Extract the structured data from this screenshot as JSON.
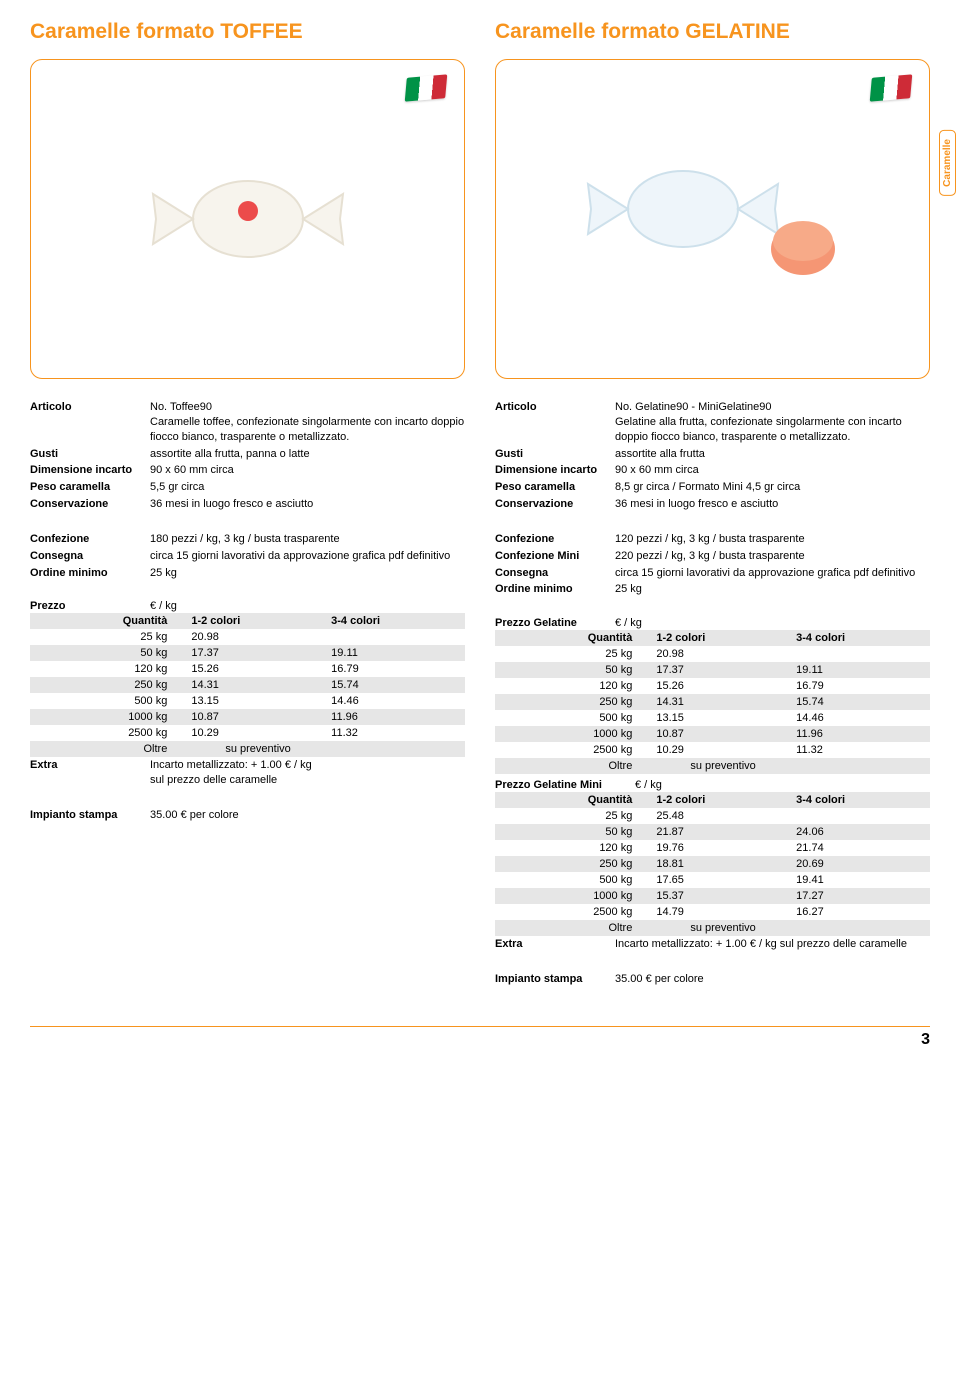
{
  "page": {
    "side_tab": "Caramelle",
    "page_number": "3"
  },
  "colors": {
    "accent": "#f7941e",
    "stripe": "#e6e6e6",
    "text": "#000000",
    "bg": "#ffffff"
  },
  "left": {
    "title": "Caramelle formato TOFFEE",
    "specs1": [
      {
        "label": "Articolo",
        "value": "No. Toffee90\nCaramelle toffee, confezionate singolarmente con incarto doppio fiocco bianco, trasparente o metallizzato."
      },
      {
        "label": "Gusti",
        "value": "assortite alla frutta, panna o latte"
      },
      {
        "label": "Dimensione incarto",
        "value": "90 x 60 mm circa"
      },
      {
        "label": "Peso caramella",
        "value": "5,5 gr circa"
      },
      {
        "label": "Conservazione",
        "value": "36 mesi in luogo fresco e asciutto"
      }
    ],
    "specs2": [
      {
        "label": "Confezione",
        "value": "180 pezzi / kg, 3 kg / busta trasparente"
      },
      {
        "label": "Consegna",
        "value": "circa 15 giorni lavorativi da approvazione grafica pdf definitivo"
      },
      {
        "label": "Ordine minimo",
        "value": "25 kg"
      }
    ],
    "price_title_label": "Prezzo",
    "price_title_value": "€ / kg",
    "price_table": {
      "headers": [
        "Quantità",
        "1-2 colori",
        "3-4 colori"
      ],
      "rows": [
        {
          "q": "25 kg",
          "c12": "20.98",
          "c34": ""
        },
        {
          "q": "50 kg",
          "c12": "17.37",
          "c34": "19.11"
        },
        {
          "q": "120 kg",
          "c12": "15.26",
          "c34": "16.79"
        },
        {
          "q": "250 kg",
          "c12": "14.31",
          "c34": "15.74"
        },
        {
          "q": "500 kg",
          "c12": "13.15",
          "c34": "14.46"
        },
        {
          "q": "1000 kg",
          "c12": "10.87",
          "c34": "11.96"
        },
        {
          "q": "2500 kg",
          "c12": "10.29",
          "c34": "11.32"
        },
        {
          "q": "Oltre",
          "c12": "",
          "c34": "",
          "span": "su preventivo"
        }
      ]
    },
    "extra_label": "Extra",
    "extra_value": "Incarto metallizzato: + 1.00 € / kg\nsul prezzo delle caramelle",
    "impianto_label": "Impianto stampa",
    "impianto_value": "35.00 € per colore"
  },
  "right": {
    "title": "Caramelle formato GELATINE",
    "specs1": [
      {
        "label": "Articolo",
        "value": "No. Gelatine90 - MiniGelatine90\nGelatine alla frutta, confezionate singolarmente con incarto doppio fiocco bianco, trasparente o metallizzato."
      },
      {
        "label": "Gusti",
        "value": "assortite alla frutta"
      },
      {
        "label": "Dimensione incarto",
        "value": "90 x 60 mm circa"
      },
      {
        "label": "Peso caramella",
        "value": "8,5 gr circa / Formato Mini 4,5 gr circa"
      },
      {
        "label": "Conservazione",
        "value": "36 mesi in luogo fresco e asciutto"
      }
    ],
    "specs2": [
      {
        "label": "Confezione",
        "value": "120 pezzi / kg, 3 kg / busta trasparente"
      },
      {
        "label": "Confezione Mini",
        "value": "220 pezzi / kg, 3 kg / busta trasparente"
      },
      {
        "label": "Consegna",
        "value": "circa 15 giorni lavorativi da approvazione grafica pdf definitivo"
      },
      {
        "label": "Ordine minimo",
        "value": "25 kg"
      }
    ],
    "price_title_label": "Prezzo Gelatine",
    "price_title_value": "€ / kg",
    "price_table": {
      "headers": [
        "Quantità",
        "1-2 colori",
        "3-4 colori"
      ],
      "rows": [
        {
          "q": "25 kg",
          "c12": "20.98",
          "c34": ""
        },
        {
          "q": "50 kg",
          "c12": "17.37",
          "c34": "19.11"
        },
        {
          "q": "120 kg",
          "c12": "15.26",
          "c34": "16.79"
        },
        {
          "q": "250 kg",
          "c12": "14.31",
          "c34": "15.74"
        },
        {
          "q": "500 kg",
          "c12": "13.15",
          "c34": "14.46"
        },
        {
          "q": "1000 kg",
          "c12": "10.87",
          "c34": "11.96"
        },
        {
          "q": "2500 kg",
          "c12": "10.29",
          "c34": "11.32"
        },
        {
          "q": "Oltre",
          "c12": "",
          "c34": "",
          "span": "su preventivo"
        }
      ]
    },
    "price_mini_title_label": "Prezzo Gelatine Mini",
    "price_mini_title_value": "€ / kg",
    "price_mini_table": {
      "headers": [
        "Quantità",
        "1-2 colori",
        "3-4 colori"
      ],
      "rows": [
        {
          "q": "25 kg",
          "c12": "25.48",
          "c34": ""
        },
        {
          "q": "50 kg",
          "c12": "21.87",
          "c34": "24.06"
        },
        {
          "q": "120 kg",
          "c12": "19.76",
          "c34": "21.74"
        },
        {
          "q": "250 kg",
          "c12": "18.81",
          "c34": "20.69"
        },
        {
          "q": "500 kg",
          "c12": "17.65",
          "c34": "19.41"
        },
        {
          "q": "1000 kg",
          "c12": "15.37",
          "c34": "17.27"
        },
        {
          "q": "2500 kg",
          "c12": "14.79",
          "c34": "16.27"
        },
        {
          "q": "Oltre",
          "c12": "",
          "c34": "",
          "span": "su preventivo"
        }
      ]
    },
    "extra_label": "Extra",
    "extra_value": "Incarto metallizzato: + 1.00 € / kg sul prezzo delle caramelle",
    "impianto_label": "Impianto stampa",
    "impianto_value": "35.00 € per colore"
  }
}
